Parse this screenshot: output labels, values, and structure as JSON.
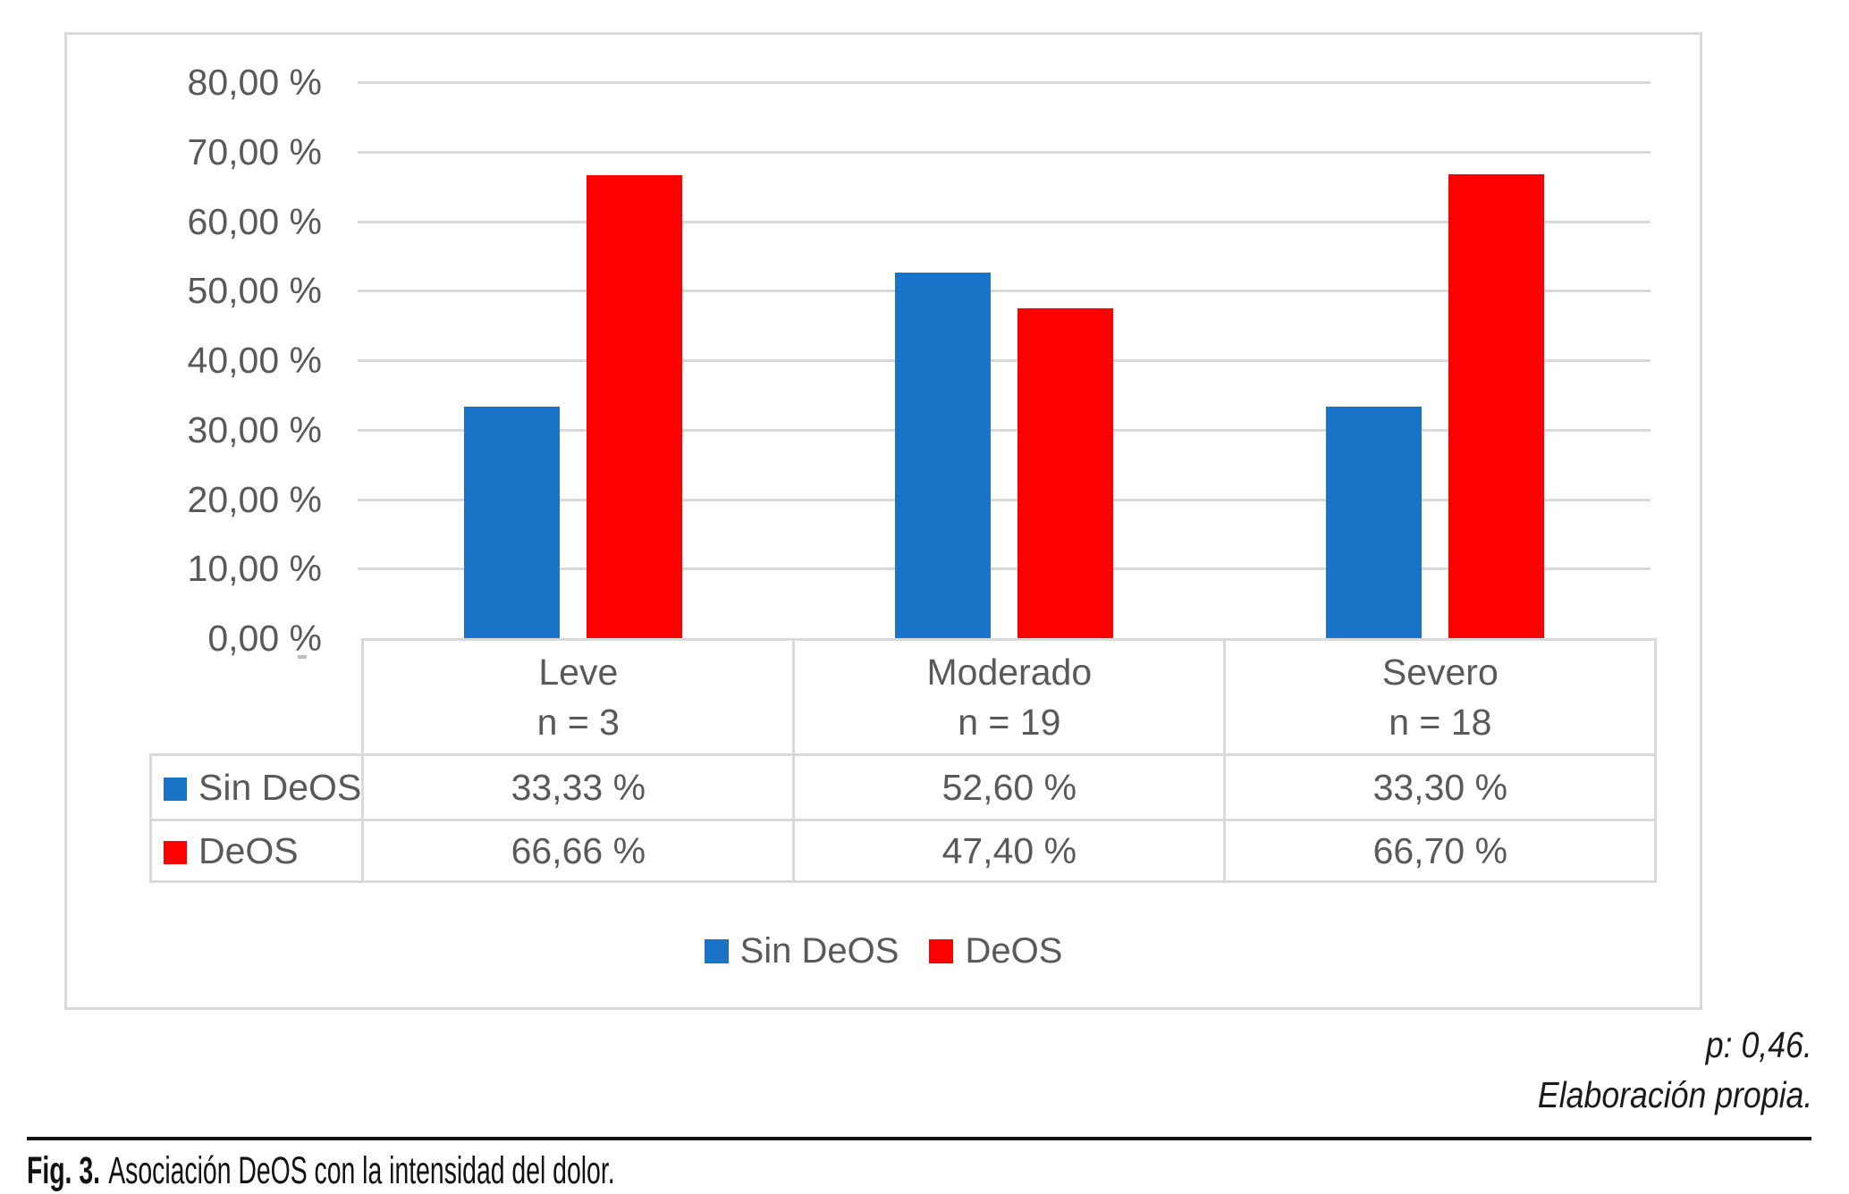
{
  "chart_data": {
    "type": "bar",
    "categories": [
      "Leve",
      "Moderado",
      "Severo"
    ],
    "category_sublabels": [
      "n = 3",
      "n = 19",
      "n = 18"
    ],
    "series": [
      {
        "name": "Sin DeOS",
        "color": "#1b73c8",
        "values": [
          33.33,
          52.6,
          33.3
        ],
        "value_labels": [
          "33,33 %",
          "52,60 %",
          "33,30 %"
        ]
      },
      {
        "name": "DeOS",
        "color": "#ff0000",
        "values": [
          66.66,
          47.4,
          66.7
        ],
        "value_labels": [
          "66,66 %",
          "47,40 %",
          "66,70 %"
        ]
      }
    ],
    "ylim": [
      0,
      80
    ],
    "ytick_step": 10,
    "ytick_labels": [
      "80,00 %",
      "70,00 %",
      "60,00 %",
      "50,00 %",
      "40,00 %",
      "30,00 %",
      "20,00 %",
      "10,00 %",
      "0,00 %"
    ],
    "grid": true,
    "legend_position": "bottom",
    "legend_labels": [
      "Sin DeOS",
      "DeOS"
    ],
    "data_table_shown": true,
    "colors": {
      "axis_text": "#595959",
      "gridline": "#d9d9d9"
    }
  },
  "annotations": {
    "p_value": "p: 0,46.",
    "source": "Elaboración propia."
  },
  "caption": {
    "label": "Fig. 3.",
    "text": "Asociación DeOS con la intensidad del dolor."
  }
}
